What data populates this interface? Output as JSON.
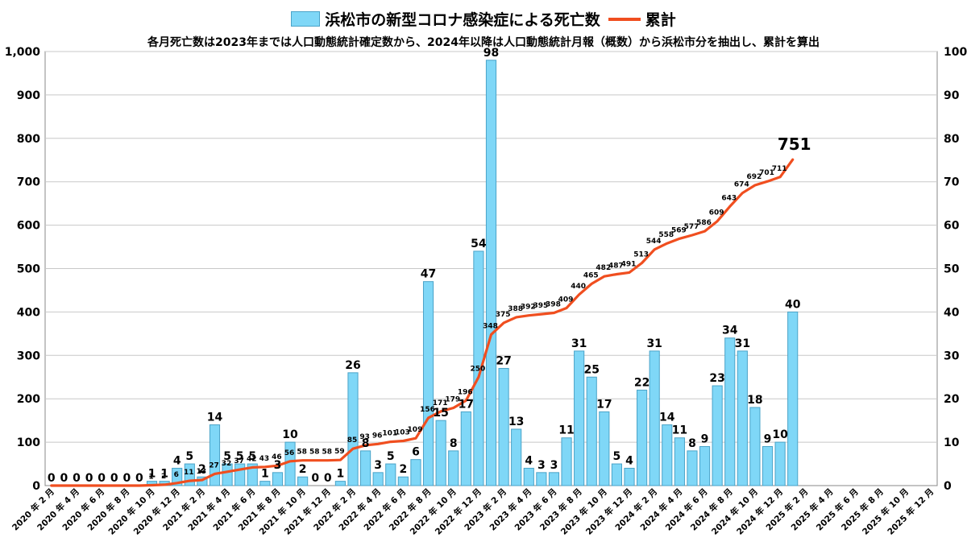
{
  "legend": {
    "bar_label": "浜松市の新型コロナ感染症による死亡数",
    "line_label": "累計"
  },
  "subtitle": "各月死亡数は2023年までは人口動態統計確定数から、2024年以降は人口動態統計月報（概数）から浜松市分を抽出し、累計を算出",
  "colors": {
    "bar": "#7fd7f7",
    "bar_border": "#4aa3c8",
    "line": "#f04e1f"
  },
  "chart_data": {
    "type": "bar",
    "months": [
      "2020-02",
      "2020-03",
      "2020-04",
      "2020-05",
      "2020-06",
      "2020-07",
      "2020-08",
      "2020-09",
      "2020-10",
      "2020-11",
      "2020-12",
      "2021-01",
      "2021-02",
      "2021-03",
      "2021-04",
      "2021-05",
      "2021-06",
      "2021-07",
      "2021-08",
      "2021-09",
      "2021-10",
      "2021-11",
      "2021-12",
      "2022-01",
      "2022-02",
      "2022-03",
      "2022-04",
      "2022-05",
      "2022-06",
      "2022-07",
      "2022-08",
      "2022-09",
      "2022-10",
      "2022-11",
      "2022-12",
      "2023-01",
      "2023-02",
      "2023-03",
      "2023-04",
      "2023-05",
      "2023-06",
      "2023-07",
      "2023-08",
      "2023-09",
      "2023-10",
      "2023-11",
      "2023-12",
      "2024-01",
      "2024-02",
      "2024-03",
      "2024-04",
      "2024-05",
      "2024-06",
      "2024-07",
      "2024-08",
      "2024-09",
      "2024-10",
      "2024-11",
      "2024-12",
      "2025-01",
      "2025-02",
      "2025-03",
      "2025-04",
      "2025-05",
      "2025-06",
      "2025-07",
      "2025-08",
      "2025-09",
      "2025-10",
      "2025-11",
      "2025-12"
    ],
    "x_tick_labels": [
      "2020 年 2 月",
      "2020 年 4 月",
      "2020 年 6 月",
      "2020 年 8 月",
      "2020 年 10 月",
      "2020 年 12 月",
      "2021 年 2 月",
      "2021 年 4 月",
      "2021 年 6 月",
      "2021 年 8 月",
      "2021 年 10 月",
      "2021 年 12 月",
      "2022 年 2 月",
      "2022 年 4 月",
      "2022 年 6 月",
      "2022 年 8 月",
      "2022 年 10 月",
      "2022 年 12 月",
      "2023 年 2 月",
      "2023 年 4 月",
      "2023 年 6 月",
      "2023 年 8 月",
      "2023 年 10 月",
      "2023 年 12 月",
      "2024 年 2 月",
      "2024 年 4 月",
      "2024 年 6 月",
      "2024 年 8 月",
      "2024 年 10 月",
      "2024 年 12 月",
      "2025 年 2 月",
      "2025 年 4 月",
      "2025 年 6 月",
      "2025 年 8 月",
      "2025 年 10 月",
      "2025 年 12 月"
    ],
    "series": [
      {
        "name": "浜松市の新型コロナ感染症による死亡数",
        "type": "bar",
        "axis": "right",
        "values": [
          0,
          0,
          0,
          0,
          0,
          0,
          0,
          0,
          1,
          1,
          4,
          5,
          2,
          14,
          5,
          5,
          5,
          1,
          3,
          10,
          2,
          0,
          0,
          1,
          26,
          8,
          3,
          5,
          2,
          6,
          47,
          15,
          8,
          17,
          54,
          98,
          27,
          13,
          4,
          3,
          3,
          11,
          31,
          25,
          17,
          5,
          4,
          22,
          31,
          14,
          11,
          8,
          9,
          23,
          34,
          31,
          18,
          9,
          10,
          40
        ]
      },
      {
        "name": "累計",
        "type": "line",
        "axis": "left",
        "values": [
          0,
          0,
          0,
          0,
          0,
          0,
          0,
          0,
          1,
          2,
          6,
          11,
          13,
          27,
          32,
          37,
          42,
          43,
          46,
          56,
          58,
          58,
          58,
          59,
          85,
          93,
          96,
          101,
          103,
          109,
          156,
          171,
          179,
          196,
          250,
          348,
          375,
          388,
          392,
          395,
          398,
          409,
          440,
          465,
          482,
          487,
          491,
          513,
          544,
          558,
          569,
          577,
          586,
          609,
          643,
          674,
          692,
          701,
          711,
          751
        ]
      }
    ],
    "y_left": {
      "min": 0,
      "max": 1000,
      "ticks": [
        "0",
        "100",
        "200",
        "300",
        "400",
        "500",
        "600",
        "700",
        "800",
        "900",
        "1,000"
      ]
    },
    "y_right": {
      "min": 0,
      "max": 100,
      "ticks": [
        "0",
        "10",
        "20",
        "30",
        "40",
        "50",
        "60",
        "70",
        "80",
        "90",
        "100"
      ]
    },
    "final_cumulative_label": "751",
    "grid": "horizontal",
    "legend_position": "top-center"
  }
}
